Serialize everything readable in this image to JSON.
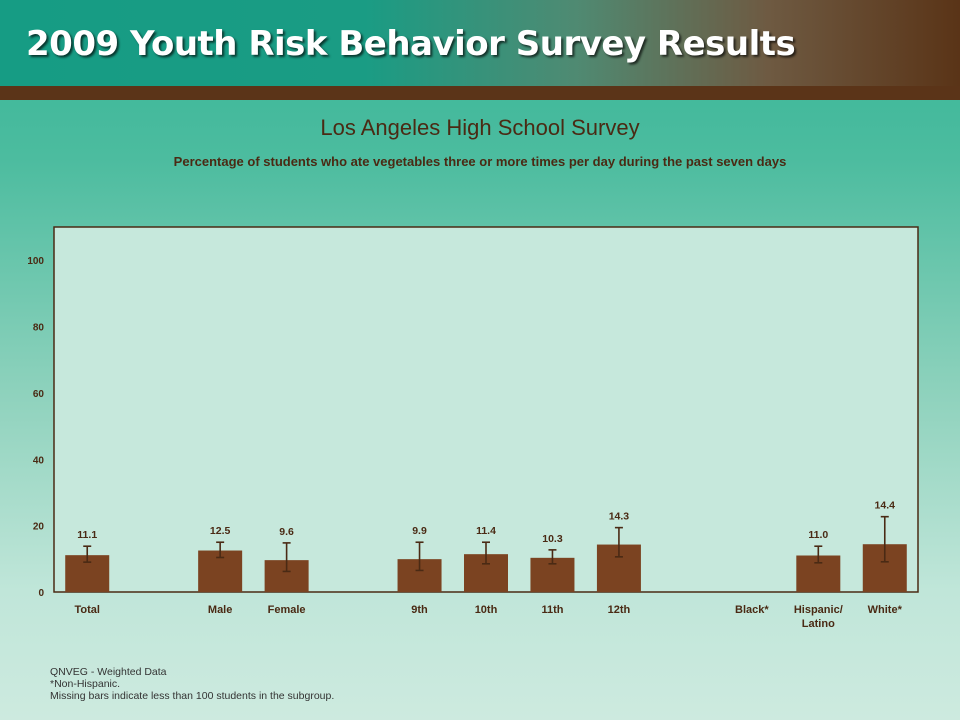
{
  "header": {
    "title": "2009 Youth Risk Behavior Survey Results"
  },
  "chart_data": {
    "type": "bar",
    "title": "Los Angeles High School Survey",
    "subtitle": "Percentage of students who ate vegetables three or more times per day during the past seven days",
    "ylim": [
      0,
      110
    ],
    "yticks": [
      "0",
      "20",
      "40",
      "60",
      "80",
      "100"
    ],
    "bar_color": "#7b4321",
    "categories": [
      {
        "label": "Total",
        "value": 11.1,
        "label_text": "11.1",
        "ci": [
          9.0,
          13.8
        ]
      },
      {
        "label": "",
        "value": null
      },
      {
        "label": "Male",
        "value": 12.5,
        "label_text": "12.5",
        "ci": [
          10.4,
          15.0
        ]
      },
      {
        "label": "Female",
        "value": 9.6,
        "label_text": "9.6",
        "ci": [
          6.2,
          14.8
        ]
      },
      {
        "label": "",
        "value": null
      },
      {
        "label": "9th",
        "value": 9.9,
        "label_text": "9.9",
        "ci": [
          6.5,
          15.0
        ]
      },
      {
        "label": "10th",
        "value": 11.4,
        "label_text": "11.4",
        "ci": [
          8.5,
          15.0
        ]
      },
      {
        "label": "11th",
        "value": 10.3,
        "label_text": "10.3",
        "ci": [
          8.5,
          12.7
        ]
      },
      {
        "label": "12th",
        "value": 14.3,
        "label_text": "14.3",
        "ci": [
          10.6,
          19.4
        ]
      },
      {
        "label": "",
        "value": null
      },
      {
        "label": "Black*",
        "value": null
      },
      {
        "label": "Hispanic/ Latino",
        "value": 11.0,
        "label_text": "11.0",
        "ci": [
          8.8,
          13.8
        ]
      },
      {
        "label": "White*",
        "value": 14.4,
        "label_text": "14.4",
        "ci": [
          9.1,
          22.7
        ]
      }
    ]
  },
  "footnotes": [
    "QNVEG - Weighted Data",
    "*Non-Hispanic.",
    "Missing bars indicate less than 100 students in the subgroup."
  ]
}
